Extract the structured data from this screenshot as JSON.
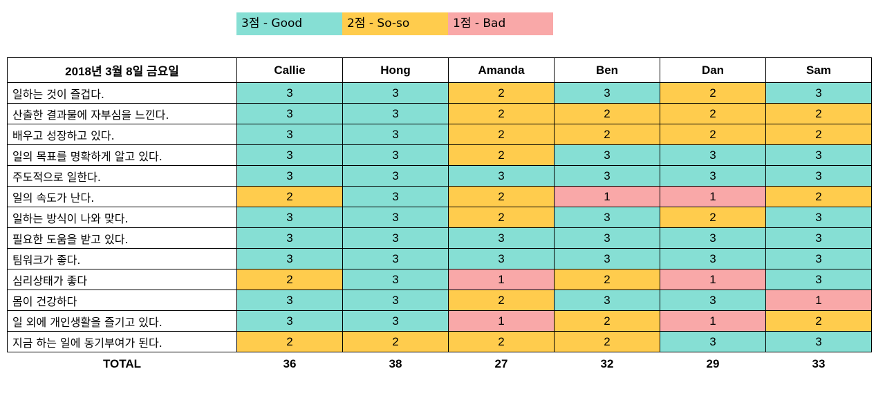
{
  "colors": {
    "good": "#86dfd4",
    "soso": "#ffcc4d",
    "bad": "#f9a8a8"
  },
  "legend": [
    {
      "label": "3점 - Good",
      "score": 3
    },
    {
      "label": "2점 - So-so",
      "score": 2
    },
    {
      "label": "1점 - Bad",
      "score": 1
    }
  ],
  "table": {
    "title": "2018년 3월 8일 금요일",
    "people": [
      "Callie",
      "Hong",
      "Amanda",
      "Ben",
      "Dan",
      "Sam"
    ],
    "rows": [
      {
        "question": "일하는 것이 즐겁다.",
        "scores": [
          "3",
          "3",
          "2",
          "3",
          "2",
          "3"
        ]
      },
      {
        "question": "산출한 결과물에 자부심을 느낀다.",
        "scores": [
          "3",
          "3",
          "2",
          "2",
          "2",
          "2"
        ]
      },
      {
        "question": "배우고 성장하고 있다.",
        "scores": [
          "3",
          "3",
          "2",
          "2",
          "2",
          "2"
        ]
      },
      {
        "question": "일의 목표를 명확하게 알고 있다.",
        "scores": [
          "3",
          "3",
          "2",
          "3",
          "3",
          "3"
        ]
      },
      {
        "question": "주도적으로 일한다.",
        "scores": [
          "3",
          "3",
          "3",
          "3",
          "3",
          "3"
        ]
      },
      {
        "question": "일의 속도가 난다.",
        "scores": [
          "2",
          "3",
          "2",
          "1",
          "1",
          "2"
        ]
      },
      {
        "question": "일하는 방식이 나와 맞다.",
        "scores": [
          "3",
          "3",
          "2",
          "3",
          "2",
          "3"
        ]
      },
      {
        "question": "필요한 도움을 받고 있다.",
        "scores": [
          "3",
          "3",
          "3",
          "3",
          "3",
          "3"
        ]
      },
      {
        "question": "팀워크가 좋다.",
        "scores": [
          "3",
          "3",
          "3",
          "3",
          "3",
          "3"
        ]
      },
      {
        "question": "심리상태가 좋다",
        "scores": [
          "2",
          "3",
          "1",
          "2",
          "1",
          "3"
        ]
      },
      {
        "question": "몸이 건강하다",
        "scores": [
          "3",
          "3",
          "2",
          "3",
          "3",
          "1"
        ]
      },
      {
        "question": "일 외에 개인생활을 즐기고 있다.",
        "scores": [
          "3",
          "3",
          "1",
          "2",
          "1",
          "2"
        ]
      },
      {
        "question": "지금 하는 일에 동기부여가 된다.",
        "scores": [
          "2",
          "2",
          "2",
          "2",
          "3",
          "3"
        ]
      }
    ],
    "total_label": "TOTAL",
    "totals": [
      "36",
      "38",
      "27",
      "32",
      "29",
      "33"
    ]
  }
}
